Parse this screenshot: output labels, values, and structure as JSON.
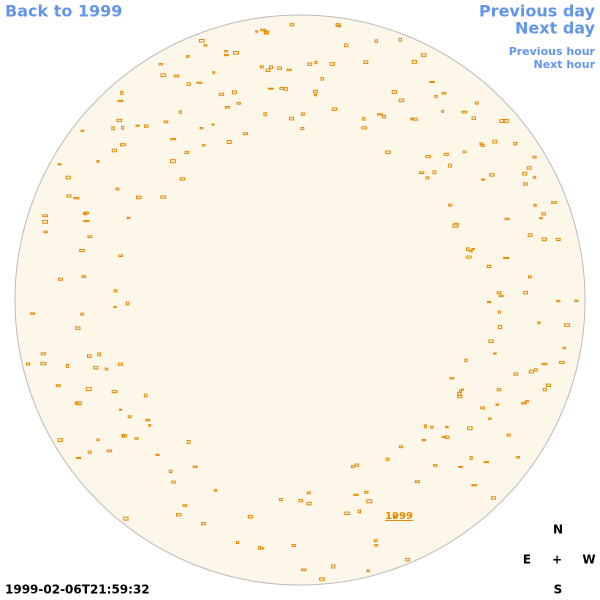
{
  "navigation": {
    "back": "Back to 1999",
    "previous_day": "Previous day",
    "next_day": "Next day",
    "previous_hour": "Previous hour",
    "next_hour": "Next hour"
  },
  "compass": {
    "north": "N",
    "east": "E",
    "center": "+",
    "west": "W",
    "south": "S"
  },
  "disk_label": "1999",
  "timestamp": "1999-02-06T21:59:32"
}
